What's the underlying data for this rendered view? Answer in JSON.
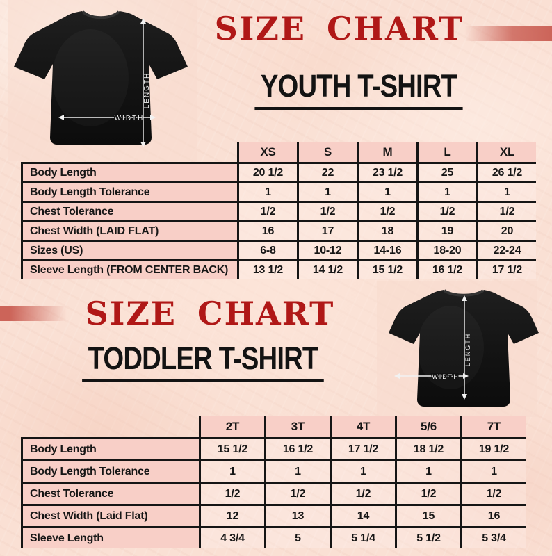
{
  "colors": {
    "accent_red": "#b01817",
    "cell_pink": "#f8cfc7",
    "line_black": "#151515",
    "bar_red": "#cc6459",
    "background": "#fae0d4",
    "shirt_black": "#141414"
  },
  "sections": [
    {
      "title": "SIZE CHART",
      "subtitle": "YOUTH T-SHIRT"
    },
    {
      "title": "SIZE CHART",
      "subtitle": "TODDLER T-SHIRT"
    }
  ],
  "shirt_diagram": {
    "length_label": "LENGTH",
    "width_label": "WIDTH"
  },
  "youth_table": {
    "columns": [
      "XS",
      "S",
      "M",
      "L",
      "XL"
    ],
    "rows": [
      {
        "label": "Body Length",
        "values": [
          "20 1/2",
          "22",
          "23 1/2",
          "25",
          "26 1/2"
        ]
      },
      {
        "label": "Body Length Tolerance",
        "values": [
          "1",
          "1",
          "1",
          "1",
          "1"
        ]
      },
      {
        "label": "Chest Tolerance",
        "values": [
          "1/2",
          "1/2",
          "1/2",
          "1/2",
          "1/2"
        ]
      },
      {
        "label": "Chest Width (LAID FLAT)",
        "values": [
          "16",
          "17",
          "18",
          "19",
          "20"
        ]
      },
      {
        "label": "Sizes (US)",
        "values": [
          "6-8",
          "10-12",
          "14-16",
          "18-20",
          "22-24"
        ]
      },
      {
        "label": "Sleeve Length (FROM CENTER BACK)",
        "values": [
          "13 1/2",
          "14 1/2",
          "15 1/2",
          "16 1/2",
          "17 1/2"
        ]
      }
    ]
  },
  "toddler_table": {
    "columns": [
      "2T",
      "3T",
      "4T",
      "5/6",
      "7T"
    ],
    "rows": [
      {
        "label": "Body Length",
        "values": [
          "15 1/2",
          "16 1/2",
          "17 1/2",
          "18 1/2",
          "19 1/2"
        ]
      },
      {
        "label": "Body Length Tolerance",
        "values": [
          "1",
          "1",
          "1",
          "1",
          "1"
        ]
      },
      {
        "label": "Chest Tolerance",
        "values": [
          "1/2",
          "1/2",
          "1/2",
          "1/2",
          "1/2"
        ]
      },
      {
        "label": "Chest Width (Laid Flat)",
        "values": [
          "12",
          "13",
          "14",
          "15",
          "16"
        ]
      },
      {
        "label": "Sleeve Length",
        "values": [
          "4 3/4",
          "5",
          "5 1/4",
          "5 1/2",
          "5 3/4"
        ]
      }
    ]
  }
}
